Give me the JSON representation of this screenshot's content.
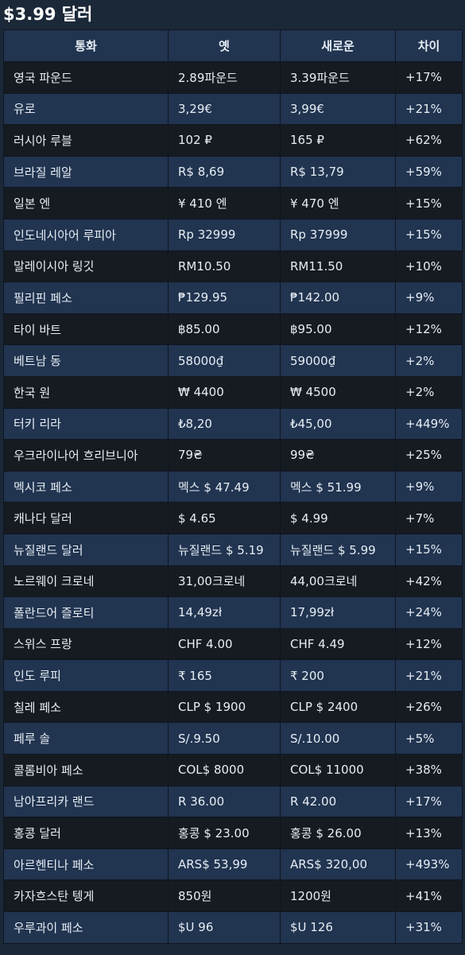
{
  "page": {
    "title": "$3.99 달러"
  },
  "table": {
    "headers": [
      "통화",
      "옛",
      "새로운",
      "차이"
    ],
    "rows": [
      [
        "영국 파운드",
        "2.89파운드",
        "3.39파운드",
        "+17%"
      ],
      [
        "유로",
        "3,29€",
        "3,99€",
        "+21%"
      ],
      [
        "러시아 루블",
        "102 ₽",
        "165 ₽",
        "+62%"
      ],
      [
        "브라질 레알",
        "R$ 8,69",
        "R$ 13,79",
        "+59%"
      ],
      [
        "일본 엔",
        "¥ 410 엔",
        "¥ 470 엔",
        "+15%"
      ],
      [
        "인도네시아어 루피아",
        "Rp 32999",
        "Rp 37999",
        "+15%"
      ],
      [
        "말레이시아 링깃",
        "RM10.50",
        "RM11.50",
        "+10%"
      ],
      [
        "필리핀 페소",
        "₱129.95",
        "₱142.00",
        "+9%"
      ],
      [
        "타이 바트",
        "฿85.00",
        "฿95.00",
        "+12%"
      ],
      [
        "베트남 동",
        "58000₫",
        "59000₫",
        "+2%"
      ],
      [
        "한국 원",
        "₩ 4400",
        "₩ 4500",
        "+2%"
      ],
      [
        "터키 리라",
        "₺8,20",
        "₺45,00",
        "+449%"
      ],
      [
        "우크라이나어 흐리브니아",
        "79₴",
        "99₴",
        "+25%"
      ],
      [
        "멕시코 페소",
        "멕스 $ 47.49",
        "멕스 $ 51.99",
        "+9%"
      ],
      [
        "캐나다 달러",
        "$ 4.65",
        "$ 4.99",
        "+7%"
      ],
      [
        "뉴질랜드 달러",
        "뉴질랜드 $ 5.19",
        "뉴질랜드 $ 5.99",
        "+15%"
      ],
      [
        "노르웨이 크로네",
        "31,00크로네",
        "44,00크로네",
        "+42%"
      ],
      [
        "폴란드어 즐로티",
        "14,49zł",
        "17,99zł",
        "+24%"
      ],
      [
        "스위스 프랑",
        "CHF 4.00",
        "CHF 4.49",
        "+12%"
      ],
      [
        "인도 루피",
        "₹ 165",
        "₹ 200",
        "+21%"
      ],
      [
        "칠레 페소",
        "CLP $ 1900",
        "CLP $ 2400",
        "+26%"
      ],
      [
        "페루 솔",
        "S/.9.50",
        "S/.10.00",
        "+5%"
      ],
      [
        "콜롬비아 페소",
        "COL$ 8000",
        "COL$ 11000",
        "+38%"
      ],
      [
        "남아프리카 랜드",
        "R 36.00",
        "R 42.00",
        "+17%"
      ],
      [
        "홍콩 달러",
        "홍콩 $ 23.00",
        "홍콩 $ 26.00",
        "+13%"
      ],
      [
        "아르헨티나 페소",
        "ARS$ 53,99",
        "ARS$ 320,00",
        "+493%"
      ],
      [
        "카자흐스탄 텡게",
        "850원",
        "1200원",
        "+41%"
      ],
      [
        "우루과이 페소",
        "$U 96",
        "$U 126",
        "+31%"
      ]
    ]
  }
}
